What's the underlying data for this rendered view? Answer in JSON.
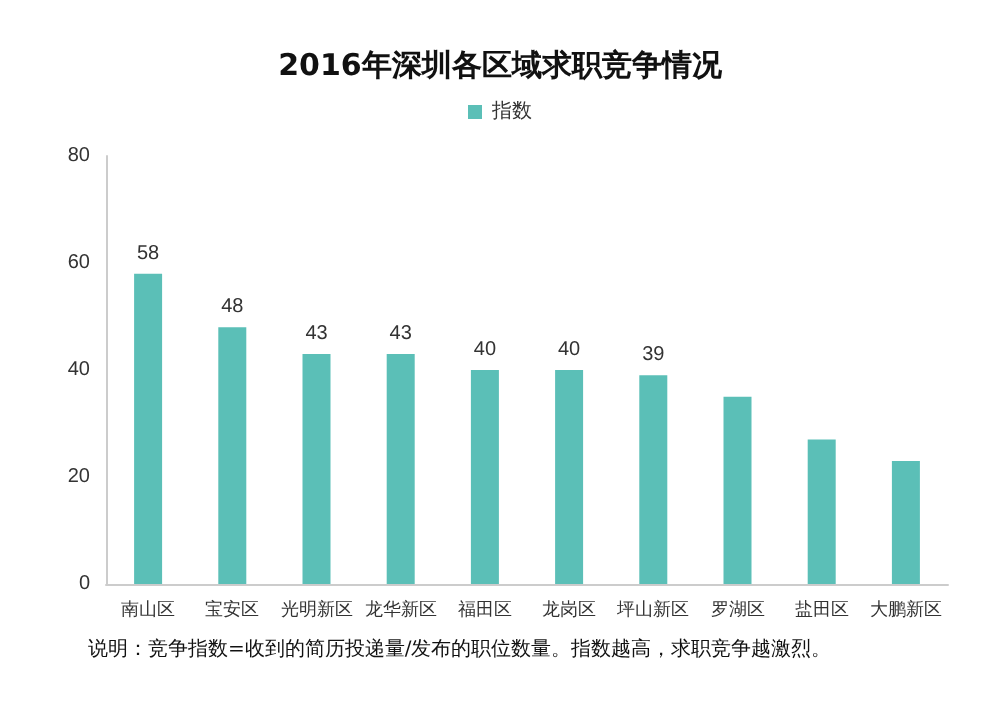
{
  "chart_data": {
    "type": "bar",
    "title": "2016年深圳各区域求职竞争情况",
    "categories": [
      "南山区",
      "宝安区",
      "光明新区",
      "龙华新区",
      "福田区",
      "龙岗区",
      "坪山新区",
      "罗湖区",
      "盐田区",
      "大鹏新区"
    ],
    "series": [
      {
        "name": "指数",
        "color": "#5bbfb7",
        "values": [
          58,
          48,
          43,
          43,
          40,
          40,
          39,
          35,
          27,
          23
        ],
        "value_labels": [
          "58",
          "48",
          "43",
          "43",
          "40",
          "40",
          "39",
          null,
          null,
          null
        ]
      }
    ],
    "ylim": [
      0,
      80
    ],
    "yticks": [
      0,
      20,
      40,
      60,
      80
    ],
    "grid": false,
    "legend": "top",
    "annotations": [
      "说明：竞争指数=收到的简历投递量/发布的职位数量。指数越高，求职竞争越激烈。"
    ]
  }
}
